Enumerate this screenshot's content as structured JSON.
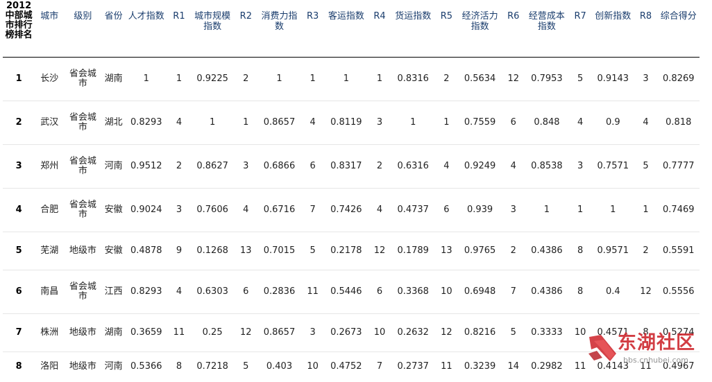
{
  "table": {
    "headers": [
      "2012中部城市排行榜排名",
      "城市",
      "级别",
      "省份",
      "人才指数",
      "R1",
      "城市规模指数",
      "R2",
      "消费力指数",
      "R3",
      "客运指数",
      "R4",
      "货运指数",
      "R5",
      "经济活力指数",
      "R6",
      "经营成本指数",
      "R7",
      "创新指数",
      "R8",
      "综合得分"
    ],
    "rows": [
      [
        "1",
        "长沙",
        "省会城市",
        "湖南",
        "1",
        "1",
        "0.9225",
        "2",
        "1",
        "1",
        "1",
        "1",
        "0.8316",
        "2",
        "0.5634",
        "12",
        "0.7953",
        "5",
        "0.9143",
        "3",
        "0.8269"
      ],
      [
        "2",
        "武汉",
        "省会城市",
        "湖北",
        "0.8293",
        "4",
        "1",
        "1",
        "0.8657",
        "4",
        "0.8119",
        "3",
        "1",
        "1",
        "0.7559",
        "6",
        "0.848",
        "4",
        "0.9",
        "4",
        "0.818"
      ],
      [
        "3",
        "郑州",
        "省会城市",
        "河南",
        "0.9512",
        "2",
        "0.8627",
        "3",
        "0.6866",
        "6",
        "0.8317",
        "2",
        "0.6316",
        "4",
        "0.9249",
        "4",
        "0.8538",
        "3",
        "0.7571",
        "5",
        "0.7777"
      ],
      [
        "4",
        "合肥",
        "省会城市",
        "安徽",
        "0.9024",
        "3",
        "0.7606",
        "4",
        "0.6716",
        "7",
        "0.7426",
        "4",
        "0.4737",
        "6",
        "0.939",
        "3",
        "1",
        "1",
        "1",
        "1",
        "0.7469"
      ],
      [
        "5",
        "芜湖",
        "地级市",
        "安徽",
        "0.4878",
        "9",
        "0.1268",
        "13",
        "0.7015",
        "5",
        "0.2178",
        "12",
        "0.1789",
        "13",
        "0.9765",
        "2",
        "0.4386",
        "8",
        "0.9571",
        "2",
        "0.5591"
      ],
      [
        "6",
        "南昌",
        "省会城市",
        "江西",
        "0.8293",
        "4",
        "0.6303",
        "6",
        "0.2836",
        "11",
        "0.5446",
        "6",
        "0.3368",
        "10",
        "0.6948",
        "7",
        "0.4386",
        "8",
        "0.4",
        "12",
        "0.5556"
      ],
      [
        "7",
        "株洲",
        "地级市",
        "湖南",
        "0.3659",
        "11",
        "0.25",
        "12",
        "0.8657",
        "3",
        "0.2673",
        "10",
        "0.2632",
        "12",
        "0.8216",
        "5",
        "0.3333",
        "10",
        "0.4571",
        "8",
        "0.5274"
      ],
      [
        "8",
        "洛阳",
        "地级市",
        "河南",
        "0.5366",
        "8",
        "0.7218",
        "5",
        "0.403",
        "10",
        "0.4752",
        "7",
        "0.2737",
        "11",
        "0.3239",
        "14",
        "0.2982",
        "11",
        "0.4143",
        "11",
        "0.4967"
      ]
    ]
  },
  "watermark": {
    "name": "东湖社区",
    "url": "bbs.cnhubei.com",
    "color": "#cf2d34"
  }
}
